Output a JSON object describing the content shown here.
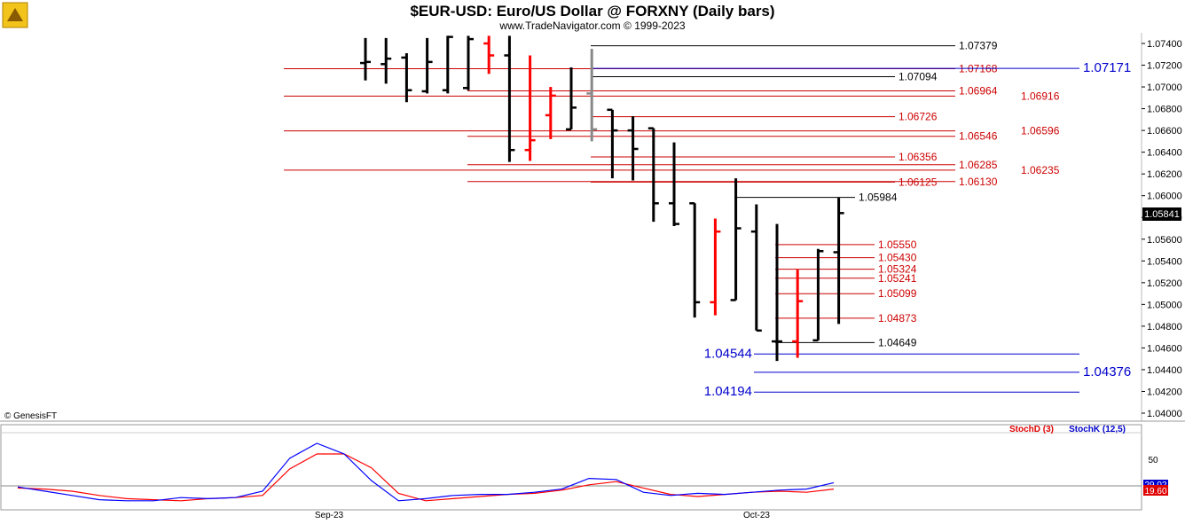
{
  "header": {
    "title": "$EUR-USD:  Euro/US Dollar @ FORXNY  (Daily bars)",
    "subtitle": "www.TradeNavigator.com © 1999-2023"
  },
  "footer": {
    "copyright": "© GenesisFT"
  },
  "price_axis": {
    "ticks": [
      "1.07400",
      "1.07200",
      "1.07000",
      "1.06800",
      "1.06600",
      "1.06400",
      "1.06200",
      "1.06000",
      "1.05800",
      "1.05600",
      "1.05400",
      "1.05200",
      "1.05000",
      "1.04800",
      "1.04600",
      "1.04400",
      "1.04200",
      "1.04000"
    ],
    "last_price": "1.05841"
  },
  "indicator": {
    "legend_d": "StochD (3)",
    "legend_k": "StochK (12,5)",
    "tick": "50",
    "badge_top": "29.02",
    "badge_bottom": "19.60"
  },
  "time_axis": {
    "labels": [
      "Sep-23",
      "Oct-23"
    ]
  },
  "colors": {
    "up_bar": "#000000",
    "down_bar": "#ff0000",
    "red_level": "#cc0000",
    "blue_level": "#0000cc",
    "black_level": "#000000",
    "stochD": "#ff0000",
    "stochK": "#0000ff",
    "last_price_bg": "#000000"
  },
  "chart_data": [
    {
      "type": "ohlc",
      "title": "$EUR-USD:  Euro/US Dollar @ FORXNY  (Daily bars)",
      "ylim": [
        1.0395,
        1.0745
      ],
      "bars": [
        {
          "o": 1.0722,
          "h": 1.0745,
          "l": 1.0706,
          "c": 1.0723,
          "col": "black"
        },
        {
          "o": 1.0721,
          "h": 1.0745,
          "l": 1.0703,
          "c": 1.0726,
          "col": "black"
        },
        {
          "o": 1.0727,
          "h": 1.0731,
          "l": 1.0686,
          "c": 1.0697,
          "col": "black"
        },
        {
          "o": 1.0696,
          "h": 1.0745,
          "l": 1.0694,
          "c": 1.0723,
          "col": "black"
        },
        {
          "o": 1.0697,
          "h": 1.0747,
          "l": 1.0694,
          "c": 1.0746,
          "col": "black"
        },
        {
          "o": 1.0699,
          "h": 1.0747,
          "l": 1.0697,
          "c": 1.0744,
          "col": "black"
        },
        {
          "o": 1.074,
          "h": 1.0747,
          "l": 1.0712,
          "c": 1.0729,
          "col": "red"
        },
        {
          "o": 1.0729,
          "h": 1.0747,
          "l": 1.0631,
          "c": 1.0642,
          "col": "black"
        },
        {
          "o": 1.0642,
          "h": 1.0729,
          "l": 1.0632,
          "c": 1.0651,
          "col": "red"
        },
        {
          "o": 1.0674,
          "h": 1.07,
          "l": 1.0652,
          "c": 1.0692,
          "col": "red"
        },
        {
          "o": 1.0661,
          "h": 1.0718,
          "l": 1.0661,
          "c": 1.0681,
          "col": "black"
        },
        {
          "o": 1.0694,
          "h": 1.0735,
          "l": 1.065,
          "c": 1.0661,
          "col": "gray"
        },
        {
          "o": 1.0679,
          "h": 1.0679,
          "l": 1.0616,
          "c": 1.066,
          "col": "black"
        },
        {
          "o": 1.066,
          "h": 1.0673,
          "l": 1.0614,
          "c": 1.0643,
          "col": "black"
        },
        {
          "o": 1.0662,
          "h": 1.0662,
          "l": 1.0576,
          "c": 1.0593,
          "col": "black"
        },
        {
          "o": 1.0593,
          "h": 1.0649,
          "l": 1.0572,
          "c": 1.0574,
          "col": "black"
        },
        {
          "o": 1.0593,
          "h": 1.0593,
          "l": 1.0488,
          "c": 1.0502,
          "col": "black"
        },
        {
          "o": 1.0502,
          "h": 1.0579,
          "l": 1.049,
          "c": 1.0567,
          "col": "red"
        },
        {
          "o": 1.0504,
          "h": 1.0616,
          "l": 1.0504,
          "c": 1.057,
          "col": "black"
        },
        {
          "o": 1.0567,
          "h": 1.0592,
          "l": 1.0476,
          "c": 1.0476,
          "col": "black"
        },
        {
          "o": 1.0466,
          "h": 1.0574,
          "l": 1.0448,
          "c": 1.0466,
          "col": "black"
        },
        {
          "o": 1.0466,
          "h": 1.0532,
          "l": 1.0451,
          "c": 1.0503,
          "col": "red"
        },
        {
          "o": 1.0467,
          "h": 1.0551,
          "l": 1.0467,
          "c": 1.0549,
          "col": "black"
        },
        {
          "o": 1.0548,
          "h": 1.0598,
          "l": 1.0482,
          "c": 1.0584,
          "col": "black"
        }
      ],
      "levels": [
        {
          "value": "1.07379",
          "price": 1.07379,
          "color": "black",
          "span": "x11",
          "label_side": "right"
        },
        {
          "value": "1.07168",
          "price": 1.07168,
          "color": "red",
          "span": "full",
          "label_side": "right"
        },
        {
          "value": "1.07171",
          "price": 1.07171,
          "color": "blue",
          "span": "x11",
          "label_side": "far",
          "big": true
        },
        {
          "value": "1.07094",
          "price": 1.07094,
          "color": "black",
          "span": "x11s",
          "label_side": "right"
        },
        {
          "value": "1.06964",
          "price": 1.06964,
          "color": "red",
          "span": "x7",
          "label_side": "right"
        },
        {
          "value": "1.06916",
          "price": 1.06916,
          "color": "red",
          "span": "full",
          "label_side": "far"
        },
        {
          "value": "1.06726",
          "price": 1.06726,
          "color": "red",
          "span": "x11s",
          "label_side": "right"
        },
        {
          "value": "1.06596",
          "price": 1.06596,
          "color": "red",
          "span": "full",
          "label_side": "far"
        },
        {
          "value": "1.06546",
          "price": 1.06546,
          "color": "red",
          "span": "x7",
          "label_side": "right"
        },
        {
          "value": "1.06356",
          "price": 1.06356,
          "color": "red",
          "span": "x11s",
          "label_side": "right"
        },
        {
          "value": "1.06285",
          "price": 1.06285,
          "color": "red",
          "span": "x7",
          "label_side": "right"
        },
        {
          "value": "1.06235",
          "price": 1.06235,
          "color": "red",
          "span": "full",
          "label_side": "far"
        },
        {
          "value": "1.06125",
          "price": 1.06125,
          "color": "red",
          "span": "x11s",
          "label_side": "right"
        },
        {
          "value": "1.06130",
          "price": 1.0613,
          "color": "red",
          "span": "x7",
          "label_side": "right"
        },
        {
          "value": "1.05984",
          "price": 1.05984,
          "color": "black",
          "span": "x18",
          "label_side": "right"
        },
        {
          "value": "1.05550",
          "price": 1.0555,
          "color": "red",
          "span": "x20",
          "label_side": "right"
        },
        {
          "value": "1.05430",
          "price": 1.0543,
          "color": "red",
          "span": "x20",
          "label_side": "right"
        },
        {
          "value": "1.05324",
          "price": 1.05324,
          "color": "red",
          "span": "x20",
          "label_side": "right"
        },
        {
          "value": "1.05241",
          "price": 1.05241,
          "color": "red",
          "span": "x20",
          "label_side": "right"
        },
        {
          "value": "1.05099",
          "price": 1.05099,
          "color": "red",
          "span": "x20",
          "label_side": "right"
        },
        {
          "value": "1.04873",
          "price": 1.04873,
          "color": "red",
          "span": "x20",
          "label_side": "right"
        },
        {
          "value": "1.04649",
          "price": 1.04649,
          "color": "black",
          "span": "x20",
          "label_side": "right"
        },
        {
          "value": "1.04544",
          "price": 1.04544,
          "color": "blue",
          "span": "x20",
          "label_side": "left",
          "big": true
        },
        {
          "value": "1.04376",
          "price": 1.04376,
          "color": "blue",
          "span": "x19",
          "label_side": "far",
          "big": true
        },
        {
          "value": "1.04194",
          "price": 1.04194,
          "color": "blue",
          "span": "x20",
          "label_side": "left",
          "big": true
        }
      ]
    },
    {
      "type": "line",
      "series": [
        {
          "name": "StochD (3)",
          "color": "red",
          "values": [
            28,
            27,
            25,
            21,
            18,
            17,
            16,
            18,
            19,
            21,
            46,
            60,
            60,
            47,
            23,
            16,
            18,
            20,
            22,
            23,
            26,
            31,
            34,
            28,
            22,
            20,
            22,
            24,
            25,
            24,
            27
          ]
        },
        {
          "name": "StochK (12,5)",
          "color": "blue",
          "values": [
            29,
            25,
            21,
            17,
            16,
            16,
            19,
            18,
            19,
            25,
            56,
            70,
            60,
            35,
            16,
            18,
            21,
            22,
            22,
            24,
            27,
            37,
            36,
            24,
            21,
            23,
            22,
            24,
            26,
            27,
            33
          ]
        }
      ]
    }
  ]
}
